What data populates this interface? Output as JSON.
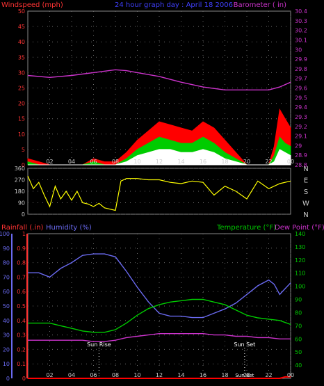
{
  "header": {
    "left_label": "Windspeed (mph)",
    "center_title": "24 hour graph day : April 18 2006",
    "right_label": "Barometer ( in)"
  },
  "bottom_header": {
    "rainfall_label": "Rainfall (.in)",
    "humidity_label": "Humidity (%)",
    "temperature_label": "Temperature (°F)",
    "dewpoint_label": "Dew Point (°F)"
  },
  "annotations": {
    "sunrise": "Sun Rise",
    "sunset": "Sun Set",
    "sunset_prefix": "Sun 8et"
  },
  "colors": {
    "wind_gust": "#ff0000",
    "wind_avg": "#00cc00",
    "wind_low": "#ffffff",
    "barometer": "#cc33cc",
    "direction": "#ffff00",
    "humidity": "#6a6af0",
    "temperature": "#00cc00",
    "dewpoint": "#cc33cc",
    "rainfall": "#ff0000",
    "grid": "#6a6a6a",
    "border": "#888888",
    "hour_tick": "#cccccc",
    "left_axis": "#ff3333",
    "right_axis": "#cc33cc",
    "left_axis_bottom": "#6a6af0",
    "right_axis_bottom": "#00cc00"
  },
  "chart_data": [
    {
      "type": "line",
      "title": "24 hour graph day : April 18 2006",
      "x_ticks": [
        "02",
        "04",
        "06",
        "08",
        "10",
        "12",
        "14",
        "16",
        "18",
        "20",
        "22",
        "00"
      ],
      "xlim": [
        0,
        24
      ],
      "left_axis": {
        "label": "Windspeed (mph)",
        "ylim": [
          0,
          50
        ],
        "ticks": [
          "0",
          "5",
          "10",
          "15",
          "20",
          "25",
          "30",
          "35",
          "40",
          "45",
          "50"
        ]
      },
      "right_axis": {
        "label": "Barometer ( in)",
        "ylim": [
          28.8,
          30.4
        ],
        "ticks": [
          "28.8",
          "28.9",
          "29",
          "29.1",
          "29.2",
          "29.3",
          "29.4",
          "29.5",
          "29.6",
          "29.7",
          "29.8",
          "29.9",
          "30",
          "30.1",
          "30.2",
          "30.3",
          "30.4"
        ]
      },
      "series": [
        {
          "name": "Barometer",
          "axis": "right",
          "x": [
            0,
            2,
            4,
            6,
            8,
            9,
            10,
            12,
            14,
            16,
            18,
            20,
            22,
            23,
            24
          ],
          "values": [
            29.73,
            29.71,
            29.73,
            29.76,
            29.79,
            29.78,
            29.76,
            29.72,
            29.66,
            29.61,
            29.58,
            29.58,
            29.58,
            29.61,
            29.66
          ]
        },
        {
          "name": "Wind Gust",
          "axis": "left",
          "x": [
            0,
            1,
            2,
            3,
            4,
            5,
            6,
            7,
            8,
            9,
            10,
            11,
            12,
            13,
            14,
            15,
            16,
            17,
            18,
            19,
            20,
            21,
            22,
            22.5,
            23,
            23.5,
            24
          ],
          "values": [
            2,
            1,
            0,
            0,
            0,
            0,
            2,
            1,
            1,
            4,
            8,
            11,
            14,
            13,
            12,
            11,
            14,
            12,
            8,
            4,
            0,
            0,
            0,
            6,
            18,
            15,
            12
          ]
        },
        {
          "name": "Wind Average",
          "axis": "left",
          "x": [
            0,
            1,
            2,
            3,
            4,
            5,
            6,
            7,
            8,
            9,
            10,
            11,
            12,
            13,
            14,
            15,
            16,
            17,
            18,
            19,
            20,
            21,
            22,
            22.5,
            23,
            23.5,
            24
          ],
          "values": [
            1,
            0,
            0,
            0,
            0,
            0,
            1,
            0,
            0,
            2,
            5,
            7,
            9,
            8,
            7,
            7,
            9,
            7,
            4,
            2,
            0,
            0,
            0,
            3,
            9,
            7,
            6
          ]
        },
        {
          "name": "Wind Low",
          "axis": "left",
          "x": [
            0,
            1,
            2,
            3,
            4,
            5,
            6,
            7,
            8,
            9,
            10,
            11,
            12,
            13,
            14,
            15,
            16,
            17,
            18,
            19,
            20,
            21,
            22,
            22.5,
            23,
            23.5,
            24
          ],
          "values": [
            0,
            0,
            0,
            0,
            0,
            0,
            0,
            0,
            0,
            1,
            3,
            4,
            5,
            5,
            4,
            4,
            5,
            4,
            2,
            1,
            0,
            0,
            0,
            1,
            5,
            4,
            3
          ]
        }
      ]
    },
    {
      "type": "line",
      "title": "",
      "x_ticks": [
        "02",
        "04",
        "06",
        "08",
        "10",
        "12",
        "14",
        "16",
        "18",
        "20",
        "22",
        "00"
      ],
      "xlim": [
        0,
        24
      ],
      "left_axis": {
        "label": "",
        "ylim": [
          0,
          360
        ],
        "ticks": [
          "0",
          "90",
          "180",
          "270",
          "360"
        ]
      },
      "right_axis": {
        "label": "",
        "compass": [
          "N",
          "W",
          "S",
          "E",
          "N"
        ]
      },
      "series": [
        {
          "name": "Wind Direction",
          "x": [
            0,
            0.5,
            1,
            1.5,
            2,
            2.5,
            3,
            3.5,
            4,
            4.5,
            5,
            5.5,
            6,
            6.5,
            7,
            7.5,
            8,
            8.5,
            9,
            10,
            11,
            12,
            13,
            14,
            15,
            16,
            17,
            18,
            19,
            20,
            21,
            22,
            23,
            24
          ],
          "values": [
            300,
            200,
            250,
            150,
            60,
            220,
            120,
            180,
            110,
            180,
            90,
            80,
            60,
            85,
            50,
            40,
            30,
            260,
            280,
            280,
            270,
            270,
            250,
            240,
            260,
            250,
            150,
            220,
            180,
            120,
            260,
            200,
            240,
            260
          ]
        }
      ]
    },
    {
      "type": "line",
      "title": "",
      "x_ticks": [
        "02",
        "04",
        "06",
        "08",
        "10",
        "12",
        "14",
        "16",
        "18",
        "20",
        "22",
        "00"
      ],
      "xlim": [
        0,
        24
      ],
      "left_axis": {
        "label": "Humidity (%)",
        "ylim": [
          0,
          100
        ],
        "ticks": [
          "0",
          "10",
          "20",
          "30",
          "40",
          "50",
          "60",
          "70",
          "80",
          "90",
          "100"
        ]
      },
      "rain_axis": {
        "label": "Rainfall (.in)",
        "ylim": [
          0,
          1
        ],
        "ticks": [
          "0",
          "0.1",
          "0.2",
          "0.3",
          "0.4",
          "0.5",
          "0.6",
          "0.7",
          "0.8",
          "0.9",
          "1"
        ]
      },
      "right_axis": {
        "label": "Temperature (°F)",
        "ylim": [
          30,
          140
        ],
        "ticks": [
          "40",
          "50",
          "60",
          "70",
          "80",
          "90",
          "100",
          "110",
          "120",
          "130",
          "140"
        ]
      },
      "series": [
        {
          "name": "Humidity",
          "axis": "left",
          "x": [
            0,
            1,
            2,
            3,
            4,
            5,
            6,
            7,
            8,
            9,
            10,
            11,
            12,
            13,
            14,
            15,
            16,
            17,
            18,
            19,
            20,
            21,
            22,
            22.5,
            23,
            23.5,
            24
          ],
          "values": [
            73,
            73,
            70,
            76,
            80,
            85,
            86,
            86,
            84,
            74,
            63,
            53,
            45,
            43,
            43,
            42,
            42,
            45,
            48,
            52,
            58,
            64,
            68,
            65,
            58,
            62,
            66
          ]
        },
        {
          "name": "Temperature",
          "axis": "right",
          "x": [
            0,
            1,
            2,
            3,
            4,
            5,
            6,
            7,
            8,
            9,
            10,
            11,
            12,
            13,
            14,
            15,
            16,
            17,
            18,
            19,
            20,
            21,
            22,
            23,
            24
          ],
          "values": [
            72,
            72,
            72,
            70,
            68,
            66,
            65,
            65,
            67,
            72,
            78,
            83,
            86,
            88,
            89,
            90,
            90,
            88,
            86,
            82,
            78,
            76,
            75,
            74,
            71
          ]
        },
        {
          "name": "Dew Point",
          "axis": "right",
          "x": [
            0,
            1,
            2,
            3,
            4,
            5,
            6,
            7,
            8,
            9,
            10,
            11,
            12,
            13,
            14,
            15,
            16,
            17,
            18,
            19,
            20,
            21,
            22,
            23,
            24
          ],
          "values": [
            59,
            59,
            59,
            59,
            59,
            59,
            58,
            58,
            59,
            61,
            62,
            63,
            64,
            64,
            64,
            64,
            64,
            63,
            63,
            62,
            62,
            61,
            61,
            60,
            60
          ]
        },
        {
          "name": "Rainfall",
          "axis": "rain",
          "x": [
            0,
            22,
            23,
            23.5,
            24
          ],
          "values": [
            0,
            0,
            0,
            0.01,
            0.01
          ]
        }
      ],
      "markers": [
        {
          "label": "Sun Rise",
          "x": 6.5
        },
        {
          "label": "Sun Set",
          "x": 19.8
        }
      ]
    }
  ]
}
